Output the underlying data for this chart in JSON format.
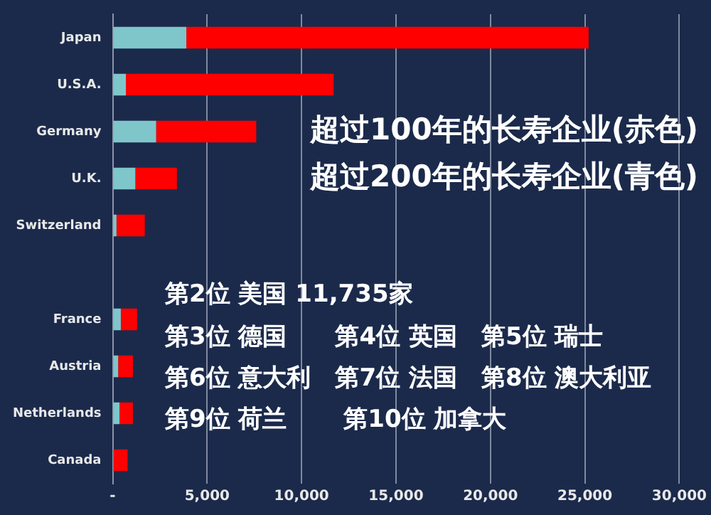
{
  "chart_data": {
    "type": "bar",
    "orientation": "horizontal",
    "stacked": true,
    "categories": [
      "Japan",
      "U.S.A.",
      "Germany",
      "U.K.",
      "Switzerland",
      null,
      "France",
      "Austria",
      "Netherlands",
      "Canada"
    ],
    "series": [
      {
        "color": "#7fc6cb",
        "values": [
          3900,
          700,
          2300,
          1200,
          200,
          null,
          430,
          290,
          360,
          0
        ]
      },
      {
        "color": "#ff0000",
        "values": [
          21300,
          11000,
          5300,
          2200,
          1500,
          null,
          860,
          780,
          710,
          790
        ]
      }
    ],
    "xlim": [
      0,
      30000
    ],
    "xticks": [
      {
        "value": 0,
        "label": "-"
      },
      {
        "value": 5000,
        "label": "5,000"
      },
      {
        "value": 10000,
        "label": "10,000"
      },
      {
        "value": 15000,
        "label": "15,000"
      },
      {
        "value": 20000,
        "label": "20,000"
      },
      {
        "value": 25000,
        "label": "25,000"
      },
      {
        "value": 30000,
        "label": "30,000"
      }
    ],
    "grid": "x",
    "legend": false,
    "annotations": [
      "超过100年的长寿企业(赤色)",
      "超过200年的长寿企业(青色)",
      "第2位 美国 11,735家",
      "第3位 德国　　第4位 英国　第5位 瑞士",
      "第6位 意大利　第7位 法国　第8位 澳大利亚",
      "第9位 荷兰　　 第10位 加拿大"
    ]
  }
}
